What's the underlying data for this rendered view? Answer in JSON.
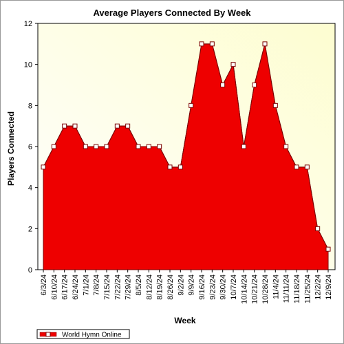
{
  "chart_data": {
    "type": "area",
    "title": "Average Players Connected By Week",
    "xlabel": "Week",
    "ylabel": "Players Connected",
    "ylim": [
      0,
      12
    ],
    "yticks": [
      0,
      2,
      4,
      6,
      8,
      10,
      12
    ],
    "grid": false,
    "legend_position": "bottom-left",
    "categories": [
      "6/3/24",
      "6/10/24",
      "6/17/24",
      "6/24/24",
      "7/1/24",
      "7/8/24",
      "7/15/24",
      "7/22/24",
      "7/29/24",
      "8/5/24",
      "8/12/24",
      "8/19/24",
      "8/26/24",
      "9/2/24",
      "9/9/24",
      "9/16/24",
      "9/23/24",
      "9/30/24",
      "10/7/24",
      "10/14/24",
      "10/21/24",
      "10/28/24",
      "11/4/24",
      "11/11/24",
      "11/18/24",
      "11/25/24",
      "12/2/24",
      "12/9/24"
    ],
    "series": [
      {
        "name": "World Hymn Online",
        "color": "#ee0000",
        "values": [
          5,
          6,
          7,
          7,
          6,
          6,
          6,
          7,
          7,
          6,
          6,
          6,
          5,
          5,
          8,
          11,
          11,
          9,
          10,
          6,
          9,
          11,
          8,
          6,
          5,
          5,
          2,
          1
        ]
      }
    ],
    "colors": {
      "plot_background_from": "#ffffff",
      "plot_background_to": "#fdfdd0",
      "area_fill": "#ee0000",
      "area_stroke": "#7a0000",
      "marker_fill": "#ffffff"
    }
  }
}
